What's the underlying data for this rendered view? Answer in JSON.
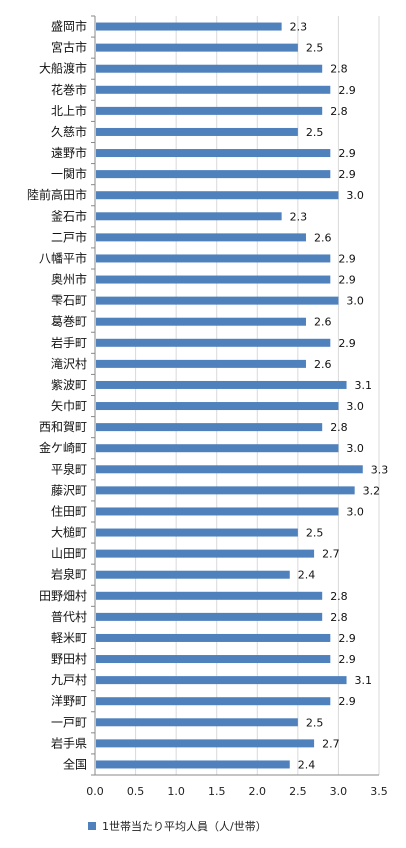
{
  "chart_data": {
    "type": "bar",
    "orientation": "horizontal",
    "categories": [
      "盛岡市",
      "宮古市",
      "大船渡市",
      "花巻市",
      "北上市",
      "久慈市",
      "遠野市",
      "一関市",
      "陸前高田市",
      "釜石市",
      "二戸市",
      "八幡平市",
      "奥州市",
      "雫石町",
      "葛巻町",
      "岩手町",
      "滝沢村",
      "紫波町",
      "矢巾町",
      "西和賀町",
      "金ケ崎町",
      "平泉町",
      "藤沢町",
      "住田町",
      "大槌町",
      "山田町",
      "岩泉町",
      "田野畑村",
      "普代村",
      "軽米町",
      "野田村",
      "九戸村",
      "洋野町",
      "一戸町",
      "岩手県",
      "全国"
    ],
    "series": [
      {
        "name": "1世帯当たり平均人員（人/世帯）",
        "values": [
          2.3,
          2.5,
          2.8,
          2.9,
          2.8,
          2.5,
          2.9,
          2.9,
          3.0,
          2.3,
          2.6,
          2.9,
          2.9,
          3.0,
          2.6,
          2.9,
          2.6,
          3.1,
          3.0,
          2.8,
          3.0,
          3.3,
          3.2,
          3.0,
          2.5,
          2.7,
          2.4,
          2.8,
          2.8,
          2.9,
          2.9,
          3.1,
          2.9,
          2.5,
          2.7,
          2.4
        ],
        "labels": [
          "2.3",
          "2.5",
          "2.8",
          "2.9",
          "2.8",
          "2.5",
          "2.9",
          "2.9",
          "3.0",
          "2.3",
          "2.6",
          "2.9",
          "2.9",
          "3.0",
          "2.6",
          "2.9",
          "2.6",
          "3.1",
          "3.0",
          "2.8",
          "3.0",
          "3.3",
          "3.2",
          "3.0",
          "2.5",
          "2.7",
          "2.4",
          "2.8",
          "2.8",
          "2.9",
          "2.9",
          "3.1",
          "2.9",
          "2.5",
          "2.7",
          "2.4"
        ],
        "color": "#4f81bd"
      }
    ],
    "xlim": [
      0,
      3.5
    ],
    "ticks": [
      "0.0",
      "0.5",
      "1.0",
      "1.5",
      "2.0",
      "2.5",
      "3.0",
      "3.5"
    ],
    "legend_position": "bottom",
    "grid": true
  },
  "legend": {
    "label": "1世帯当たり平均人員（人/世帯）"
  }
}
